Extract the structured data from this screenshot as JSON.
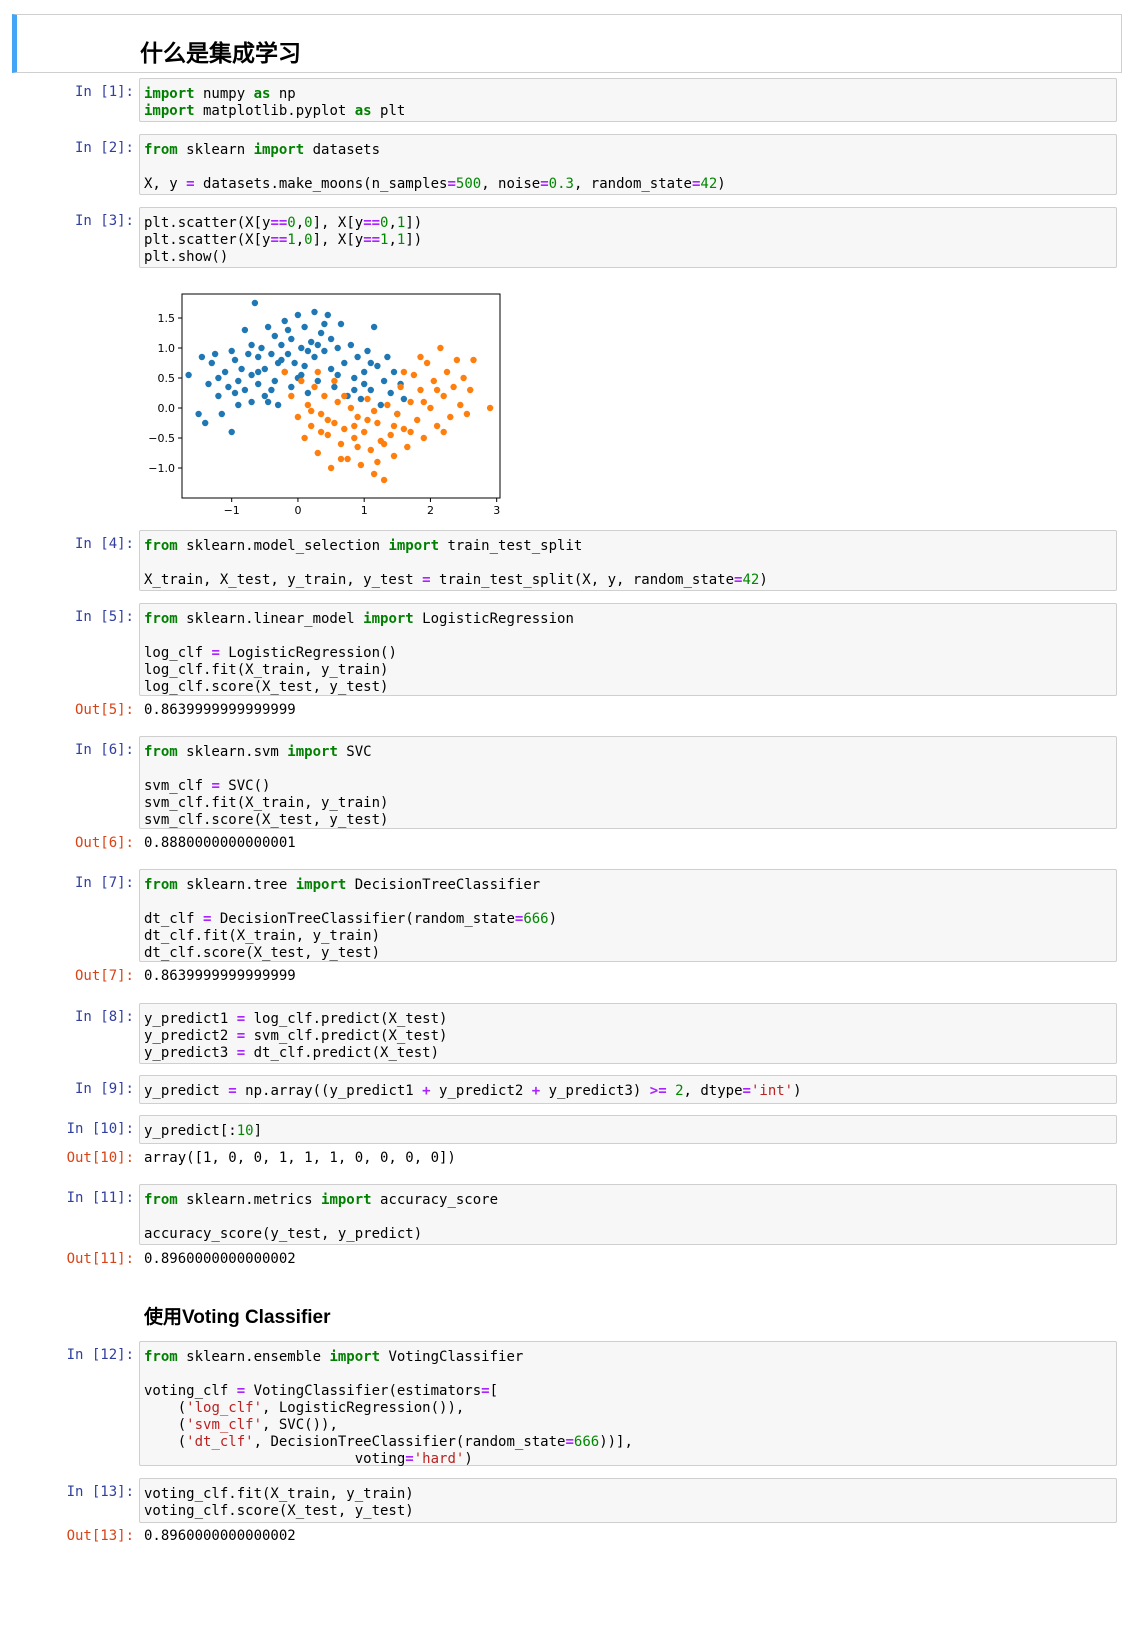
{
  "markdown": {
    "title": "什么是集成学习",
    "subtitle": "使用Voting Classifier"
  },
  "cells": [
    {
      "in_prompt": "In [1]:"
    },
    {
      "in_prompt": "In [2]:"
    },
    {
      "in_prompt": "In [3]:"
    },
    {
      "in_prompt": "In [4]:"
    },
    {
      "in_prompt": "In [5]:",
      "out_prompt": "Out[5]:",
      "output": "0.8639999999999999"
    },
    {
      "in_prompt": "In [6]:",
      "out_prompt": "Out[6]:",
      "output": "0.8880000000000001"
    },
    {
      "in_prompt": "In [7]:",
      "out_prompt": "Out[7]:",
      "output": "0.8639999999999999"
    },
    {
      "in_prompt": "In [8]:"
    },
    {
      "in_prompt": "In [9]:"
    },
    {
      "in_prompt": "In [10]:",
      "out_prompt": "Out[10]:",
      "output": "array([1, 0, 0, 1, 1, 1, 0, 0, 0, 0])"
    },
    {
      "in_prompt": "In [11]:",
      "out_prompt": "Out[11]:",
      "output": "0.8960000000000002"
    },
    {
      "in_prompt": "In [12]:"
    },
    {
      "in_prompt": "In [13]:",
      "out_prompt": "Out[13]:",
      "output": "0.8960000000000002"
    }
  ],
  "code": {
    "c1": [
      "import",
      " numpy ",
      "as",
      " np",
      "import",
      " matplotlib.pyplot ",
      "as",
      " plt"
    ],
    "c2": [
      "from",
      " sklearn ",
      "import",
      " datasets",
      "X, y ",
      "=",
      " datasets.make_moons(n_samples",
      "=",
      "500",
      ", noise",
      "=",
      "0.3",
      ", random_state",
      "=",
      "42",
      ")"
    ],
    "c3": [
      "plt.scatter(X[y",
      "==",
      "0",
      ",",
      "0",
      "], X[y",
      "==",
      "0",
      ",",
      "1",
      "])",
      "plt.scatter(X[y",
      "==",
      "1",
      ",",
      "0",
      "], X[y",
      "==",
      "1",
      ",",
      "1",
      "])",
      "plt.show()"
    ],
    "c4": [
      "from",
      " sklearn.model_selection ",
      "import",
      " train_test_split",
      "X_train, X_test, y_train, y_test ",
      "=",
      " train_test_split(X, y, random_state",
      "=",
      "42",
      ")"
    ],
    "c5": [
      "from",
      " sklearn.linear_model ",
      "import",
      " LogisticRegression",
      "log_clf ",
      "=",
      " LogisticRegression()",
      "log_clf.fit(X_train, y_train)",
      "log_clf.score(X_test, y_test)"
    ],
    "c6": [
      "from",
      " sklearn.svm ",
      "import",
      " SVC",
      "svm_clf ",
      "=",
      " SVC()",
      "svm_clf.fit(X_train, y_train)",
      "svm_clf.score(X_test, y_test)"
    ],
    "c7": [
      "from",
      " sklearn.tree ",
      "import",
      " DecisionTreeClassifier",
      "dt_clf ",
      "=",
      " DecisionTreeClassifier(random_state",
      "=",
      "666",
      ")",
      "dt_clf.fit(X_train, y_train)",
      "dt_clf.score(X_test, y_test)"
    ],
    "c8": [
      "y_predict1 ",
      "=",
      " log_clf.predict(X_test)",
      "y_predict2 ",
      "=",
      " svm_clf.predict(X_test)",
      "y_predict3 ",
      "=",
      " dt_clf.predict(X_test)"
    ],
    "c9": [
      "y_predict ",
      "=",
      " np.array((y_predict1 ",
      "+",
      " y_predict2 ",
      "+",
      " y_predict3) ",
      ">=",
      " ",
      "2",
      ", dtype",
      "=",
      "'int'",
      ")"
    ],
    "c10": [
      "y_predict[:",
      "10",
      "]"
    ],
    "c11": [
      "from",
      " sklearn.metrics ",
      "import",
      " accuracy_score",
      "accuracy_score(y_test, y_predict)"
    ],
    "c12": [
      "from",
      " sklearn.ensemble ",
      "import",
      " VotingClassifier",
      "voting_clf ",
      "=",
      " VotingClassifier(estimators",
      "=",
      "[",
      "    (",
      "'log_clf'",
      ", LogisticRegression()),",
      "    (",
      "'svm_clf'",
      ", SVC()),",
      "    (",
      "'dt_clf'",
      ", DecisionTreeClassifier(random_state",
      "=",
      "666",
      "))],",
      "                         voting",
      "=",
      "'hard'",
      ")"
    ],
    "c13": [
      "voting_clf.fit(X_train, y_train)",
      "voting_clf.score(X_test, y_test)"
    ]
  },
  "chart_data": {
    "type": "scatter",
    "xlim": [
      -1.75,
      3.05
    ],
    "ylim": [
      -1.5,
      1.9
    ],
    "x_ticks": [
      "−1",
      "0",
      "1",
      "2",
      "3"
    ],
    "y_ticks": [
      "1.5",
      "1.0",
      "0.5",
      "0.0",
      "−0.5",
      "−1.0"
    ],
    "grid": false,
    "series": [
      {
        "color": "#1f77b4",
        "points": [
          [
            -1.65,
            0.55
          ],
          [
            -1.5,
            -0.1
          ],
          [
            -1.45,
            0.85
          ],
          [
            -1.4,
            -0.25
          ],
          [
            -1.35,
            0.4
          ],
          [
            -1.3,
            0.75
          ],
          [
            -1.25,
            0.9
          ],
          [
            -1.2,
            0.2
          ],
          [
            -1.15,
            -0.1
          ],
          [
            -1.1,
            0.6
          ],
          [
            -1.05,
            0.35
          ],
          [
            -1.0,
            0.95
          ],
          [
            -1.0,
            -0.4
          ],
          [
            -0.95,
            0.8
          ],
          [
            -0.9,
            0.45
          ],
          [
            -0.9,
            0.05
          ],
          [
            -0.85,
            0.65
          ],
          [
            -0.8,
            1.3
          ],
          [
            -0.8,
            0.3
          ],
          [
            -0.75,
            0.9
          ],
          [
            -0.7,
            0.1
          ],
          [
            -0.7,
            0.55
          ],
          [
            -0.65,
            1.75
          ],
          [
            -0.6,
            0.85
          ],
          [
            -0.6,
            0.4
          ],
          [
            -0.55,
            1.0
          ],
          [
            -0.5,
            0.2
          ],
          [
            -0.5,
            0.65
          ],
          [
            -0.45,
            1.35
          ],
          [
            -0.4,
            0.9
          ],
          [
            -0.35,
            0.45
          ],
          [
            -0.35,
            1.2
          ],
          [
            -0.3,
            0.05
          ],
          [
            -0.3,
            0.75
          ],
          [
            -0.25,
            1.05
          ],
          [
            -0.2,
            0.6
          ],
          [
            -0.2,
            1.45
          ],
          [
            -0.15,
            0.9
          ],
          [
            -0.1,
            0.35
          ],
          [
            -0.1,
            1.15
          ],
          [
            -0.05,
            0.75
          ],
          [
            0.0,
            1.55
          ],
          [
            0.0,
            0.5
          ],
          [
            0.05,
            1.0
          ],
          [
            0.1,
            1.35
          ],
          [
            0.1,
            0.7
          ],
          [
            0.15,
            0.25
          ],
          [
            0.2,
            1.1
          ],
          [
            0.25,
            1.6
          ],
          [
            0.25,
            0.85
          ],
          [
            0.3,
            0.45
          ],
          [
            0.35,
            1.25
          ],
          [
            0.4,
            0.95
          ],
          [
            0.45,
            1.55
          ],
          [
            0.5,
            0.65
          ],
          [
            0.5,
            1.15
          ],
          [
            0.55,
            0.35
          ],
          [
            0.6,
            1.0
          ],
          [
            0.65,
            1.4
          ],
          [
            0.7,
            0.75
          ],
          [
            0.75,
            0.2
          ],
          [
            0.8,
            1.05
          ],
          [
            0.85,
            0.5
          ],
          [
            0.9,
            0.85
          ],
          [
            0.95,
            0.15
          ],
          [
            1.0,
            0.6
          ],
          [
            1.05,
            0.95
          ],
          [
            1.1,
            0.3
          ],
          [
            1.15,
            1.35
          ],
          [
            1.2,
            0.7
          ],
          [
            1.25,
            0.05
          ],
          [
            1.3,
            0.45
          ],
          [
            1.35,
            0.85
          ],
          [
            1.4,
            0.25
          ],
          [
            1.45,
            0.6
          ],
          [
            1.5,
            -0.1
          ],
          [
            1.55,
            0.4
          ],
          [
            1.6,
            0.15
          ],
          [
            -1.2,
            0.5
          ],
          [
            -0.95,
            0.25
          ],
          [
            -0.6,
            0.6
          ],
          [
            -0.4,
            0.3
          ],
          [
            -0.25,
            0.8
          ],
          [
            0.05,
            0.55
          ],
          [
            0.3,
            1.05
          ],
          [
            0.6,
            0.55
          ],
          [
            0.85,
            0.3
          ],
          [
            1.1,
            0.75
          ],
          [
            -0.7,
            1.05
          ],
          [
            -0.15,
            1.3
          ],
          [
            0.4,
            1.4
          ],
          [
            0.15,
            0.95
          ],
          [
            -0.45,
            0.1
          ],
          [
            1.0,
            0.4
          ]
        ]
      },
      {
        "color": "#ff7f0e",
        "points": [
          [
            -0.2,
            0.6
          ],
          [
            -0.1,
            0.2
          ],
          [
            0.0,
            -0.15
          ],
          [
            0.05,
            0.45
          ],
          [
            0.1,
            -0.5
          ],
          [
            0.15,
            0.05
          ],
          [
            0.2,
            -0.3
          ],
          [
            0.25,
            0.35
          ],
          [
            0.3,
            -0.75
          ],
          [
            0.35,
            -0.1
          ],
          [
            0.4,
            0.2
          ],
          [
            0.45,
            -0.45
          ],
          [
            0.5,
            -1.0
          ],
          [
            0.55,
            -0.25
          ],
          [
            0.6,
            0.1
          ],
          [
            0.65,
            -0.6
          ],
          [
            0.7,
            -0.35
          ],
          [
            0.75,
            -0.85
          ],
          [
            0.8,
            0.0
          ],
          [
            0.85,
            -0.5
          ],
          [
            0.9,
            -0.15
          ],
          [
            0.95,
            -0.95
          ],
          [
            1.0,
            -0.4
          ],
          [
            1.05,
            0.15
          ],
          [
            1.1,
            -0.7
          ],
          [
            1.15,
            -1.1
          ],
          [
            1.2,
            -0.25
          ],
          [
            1.25,
            -0.55
          ],
          [
            1.3,
            -1.2
          ],
          [
            1.35,
            0.05
          ],
          [
            1.4,
            -0.45
          ],
          [
            1.45,
            -0.8
          ],
          [
            1.5,
            -0.1
          ],
          [
            1.55,
            0.35
          ],
          [
            1.6,
            -0.35
          ],
          [
            1.65,
            -0.65
          ],
          [
            1.7,
            0.1
          ],
          [
            1.75,
            0.55
          ],
          [
            1.8,
            -0.2
          ],
          [
            1.85,
            0.3
          ],
          [
            1.9,
            -0.5
          ],
          [
            1.95,
            0.75
          ],
          [
            2.0,
            0.0
          ],
          [
            2.05,
            0.45
          ],
          [
            2.1,
            -0.3
          ],
          [
            2.15,
            1.0
          ],
          [
            2.2,
            0.2
          ],
          [
            2.25,
            0.6
          ],
          [
            2.3,
            -0.15
          ],
          [
            2.35,
            0.35
          ],
          [
            2.4,
            0.8
          ],
          [
            2.45,
            0.05
          ],
          [
            2.5,
            0.5
          ],
          [
            2.55,
            -0.1
          ],
          [
            2.6,
            0.3
          ],
          [
            2.65,
            0.8
          ],
          [
            2.9,
            0.0
          ],
          [
            0.3,
            0.6
          ],
          [
            0.55,
            0.45
          ],
          [
            0.7,
            0.2
          ],
          [
            0.9,
            -0.65
          ],
          [
            1.05,
            -0.2
          ],
          [
            1.3,
            -0.6
          ],
          [
            1.45,
            -0.3
          ],
          [
            1.7,
            -0.4
          ],
          [
            1.9,
            0.1
          ],
          [
            2.1,
            0.3
          ],
          [
            0.2,
            -0.05
          ],
          [
            0.45,
            -0.2
          ],
          [
            0.65,
            -0.85
          ],
          [
            1.2,
            -0.9
          ],
          [
            1.6,
            0.6
          ],
          [
            1.85,
            0.85
          ],
          [
            2.2,
            -0.4
          ],
          [
            0.35,
            -0.4
          ],
          [
            0.85,
            -0.3
          ],
          [
            1.15,
            -0.05
          ]
        ]
      }
    ]
  }
}
